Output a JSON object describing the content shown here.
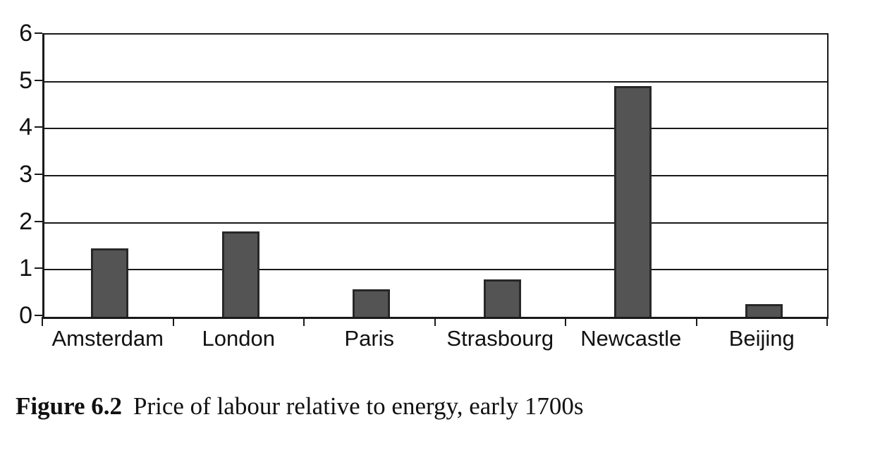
{
  "figure": {
    "caption_label": "Figure 6.2",
    "caption_text": "Price of labour relative to energy, early 1700s"
  },
  "chart_data": {
    "type": "bar",
    "categories": [
      "Amsterdam",
      "London",
      "Paris",
      "Strasbourg",
      "Newcastle",
      "Beijing"
    ],
    "values": [
      1.45,
      1.82,
      0.58,
      0.8,
      4.9,
      0.27
    ],
    "title": "Figure 6.2 Price of labour relative to energy, early 1700s",
    "xlabel": "",
    "ylabel": "",
    "ylim": [
      0,
      6
    ],
    "yticks": [
      0,
      1,
      2,
      3,
      4,
      5,
      6
    ],
    "grid": "horizontal-only",
    "legend": "none",
    "bar_fill_color": "#545454",
    "bar_border_color": "#282828",
    "axis_color": "#1a1a1a",
    "background_color": "#ffffff"
  }
}
